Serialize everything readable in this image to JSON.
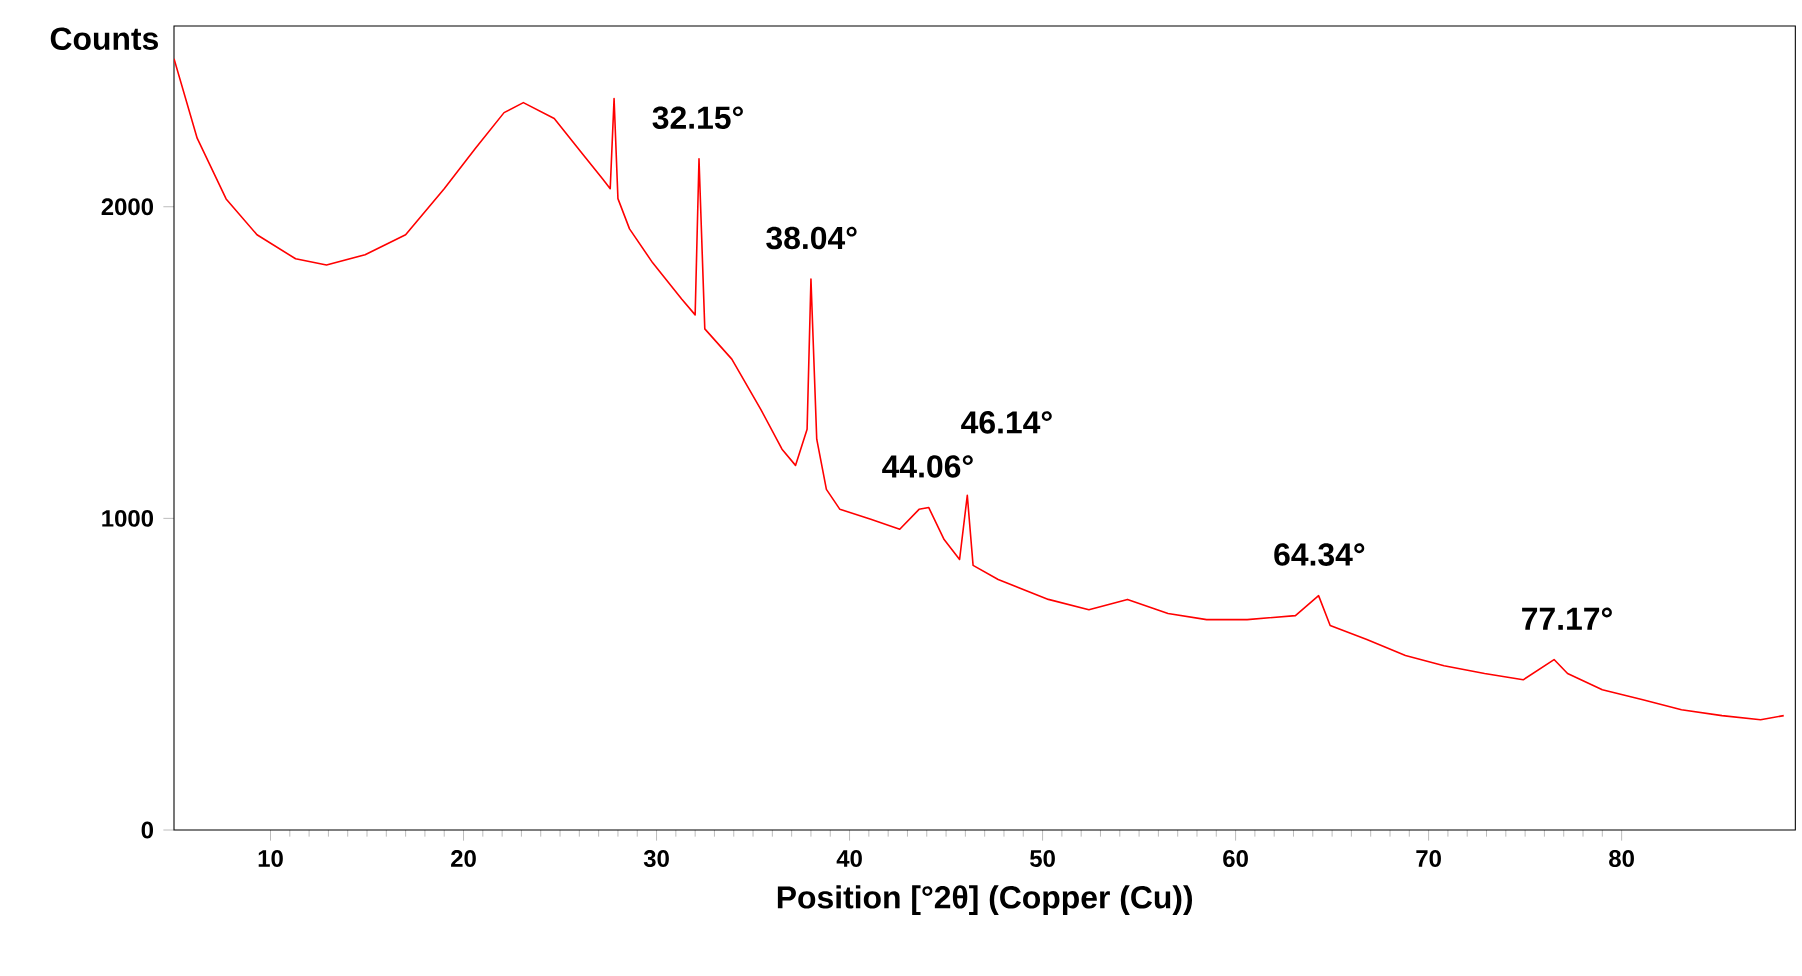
{
  "chart_data": {
    "type": "line",
    "xlabel": "Position [°2θ] (Copper (Cu))",
    "ylabel": "Counts",
    "xlim": [
      5,
      89
    ],
    "ylim": [
      0,
      2580
    ],
    "xticks": [
      10,
      20,
      30,
      40,
      50,
      60,
      70,
      80
    ],
    "yticks": [
      0,
      1000,
      2000
    ],
    "grid": false,
    "marker": "none",
    "line_style": "solid",
    "series": [
      {
        "color": "#ff0000",
        "x": [
          5,
          6.2,
          7.7,
          9.3,
          11.3,
          12.9,
          14.9,
          17,
          19,
          20.6,
          22.1,
          23.1,
          24.7,
          26.2,
          27.2,
          27.6,
          27.8,
          28.0,
          28.6,
          29.8,
          31.3,
          32.0,
          32.2,
          32.5,
          33.9,
          35.4,
          36.5,
          37.2,
          37.8,
          38.0,
          38.3,
          38.8,
          39.5,
          41.1,
          42.6,
          43.6,
          44.1,
          44.9,
          45.7,
          46.1,
          46.4,
          47.7,
          50.3,
          52.4,
          54.4,
          56.5,
          58.5,
          60.6,
          63.1,
          64.3,
          64.9,
          66.8,
          68.8,
          70.8,
          72.9,
          74.9,
          76.5,
          77.2,
          79.0,
          81.1,
          83.1,
          85.2,
          87.2,
          88.4
        ],
        "values": [
          2475,
          2220,
          2025,
          1910,
          1833,
          1813,
          1846,
          1910,
          2058,
          2186,
          2302,
          2334,
          2283,
          2167,
          2090,
          2058,
          2347,
          2026,
          1929,
          1820,
          1704,
          1653,
          2154,
          1608,
          1511,
          1350,
          1222,
          1170,
          1286,
          1768,
          1254,
          1093,
          1029,
          997,
          965,
          1029,
          1035,
          932,
          868,
          1074,
          849,
          804,
          740,
          707,
          740,
          695,
          675,
          675,
          688,
          752,
          656,
          611,
          560,
          527,
          502,
          482,
          547,
          502,
          450,
          418,
          386,
          367,
          354,
          367
        ]
      }
    ],
    "annotations": [
      {
        "text": "32.15°",
        "x": 32.15,
        "y": 2154
      },
      {
        "text": "38.04°",
        "x": 38.04,
        "y": 1768
      },
      {
        "text": "44.06°",
        "x": 44.06,
        "y": 1035
      },
      {
        "text": "46.14°",
        "x": 46.14,
        "y": 1074
      },
      {
        "text": "64.34°",
        "x": 64.34,
        "y": 752
      },
      {
        "text": "77.17°",
        "x": 77.17,
        "y": 547
      }
    ]
  }
}
